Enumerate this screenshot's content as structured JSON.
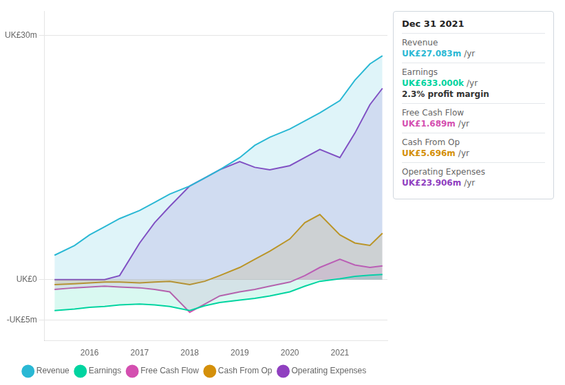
{
  "chart_data": {
    "type": "line",
    "x": [
      2015.3,
      2015.7,
      2016.0,
      2016.3,
      2016.6,
      2017.0,
      2017.3,
      2017.6,
      2018.0,
      2018.3,
      2018.6,
      2019.0,
      2019.3,
      2019.6,
      2020.0,
      2020.3,
      2020.6,
      2021.0,
      2021.3,
      2021.6,
      2021.85
    ],
    "series": [
      {
        "name": "Revenue",
        "color": "#2ab8d4",
        "values": [
          3.0,
          4.2,
          5.5,
          6.5,
          7.5,
          8.5,
          9.5,
          10.5,
          11.5,
          12.5,
          13.5,
          15.0,
          16.5,
          17.5,
          18.5,
          19.5,
          20.5,
          22.0,
          24.5,
          26.5,
          27.5
        ]
      },
      {
        "name": "Earnings",
        "color": "#00d4a0",
        "values": [
          -3.8,
          -3.6,
          -3.4,
          -3.3,
          -3.1,
          -3.0,
          -3.1,
          -3.3,
          -3.8,
          -3.2,
          -2.8,
          -2.5,
          -2.3,
          -2.0,
          -1.5,
          -0.8,
          -0.2,
          0.1,
          0.4,
          0.55,
          0.63
        ]
      },
      {
        "name": "Free Cash Flow",
        "color": "#d44fb0",
        "values": [
          -1.2,
          -1.0,
          -0.9,
          -0.8,
          -0.9,
          -1.0,
          -1.2,
          -1.5,
          -4.0,
          -3.0,
          -2.0,
          -1.5,
          -1.2,
          -0.8,
          -0.3,
          0.5,
          1.5,
          2.5,
          1.8,
          1.5,
          1.7
        ]
      },
      {
        "name": "Cash From Op",
        "color": "#d4900a",
        "values": [
          -0.6,
          -0.5,
          -0.4,
          -0.3,
          -0.3,
          -0.4,
          -0.3,
          -0.2,
          -0.6,
          -0.2,
          0.5,
          1.5,
          2.5,
          3.5,
          5.0,
          7.0,
          8.0,
          5.5,
          4.5,
          4.2,
          5.7
        ]
      },
      {
        "name": "Operating Expenses",
        "color": "#9040c0",
        "values": [
          0.0,
          0.0,
          0.0,
          0.0,
          0.5,
          4.5,
          7.0,
          9.0,
          11.5,
          12.5,
          13.5,
          14.5,
          13.8,
          13.5,
          14.0,
          15.0,
          16.0,
          15.0,
          18.0,
          21.5,
          23.5
        ]
      }
    ],
    "xlim": [
      2015.1,
      2021.95
    ],
    "xticks": [
      2016,
      2017,
      2018,
      2019,
      2020,
      2021
    ],
    "ylim": [
      -7.5,
      33
    ],
    "yticks": [
      {
        "value": -5,
        "label": "-UK£5m"
      },
      {
        "value": 0,
        "label": "UK£0"
      },
      {
        "value": 30,
        "label": "UK£30m"
      }
    ],
    "grid": true,
    "legend": "bottom",
    "info_box": {
      "title": "Dec 31 2021",
      "rows": [
        {
          "label": "Revenue",
          "value": "UK£27.083m",
          "suffix": "/yr",
          "color": "#2ab8d4"
        },
        {
          "label": "Earnings",
          "value": "UK£633.000k",
          "suffix": "/yr",
          "color": "#00d4a0",
          "extra": "2.3% profit margin"
        },
        {
          "label": "Free Cash Flow",
          "value": "UK£1.689m",
          "suffix": "/yr",
          "color": "#d44fb0"
        },
        {
          "label": "Cash From Op",
          "value": "UK£5.696m",
          "suffix": "/yr",
          "color": "#d4900a"
        },
        {
          "label": "Operating Expenses",
          "value": "UK£23.906m",
          "suffix": "/yr",
          "color": "#9040c0"
        }
      ]
    }
  }
}
